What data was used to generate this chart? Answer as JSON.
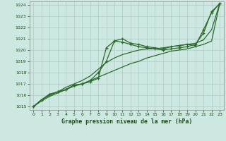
{
  "bg_color": "#cce8e0",
  "grid_color": "#aacccc",
  "line_color": "#2d6b2d",
  "xlabel": "Graphe pression niveau de la mer (hPa)",
  "ylim": [
    1014.7,
    1024.3
  ],
  "xlim": [
    -0.5,
    23.5
  ],
  "yticks": [
    1015,
    1016,
    1017,
    1018,
    1019,
    1020,
    1021,
    1022,
    1023,
    1024
  ],
  "xticks": [
    0,
    1,
    2,
    3,
    4,
    5,
    6,
    7,
    8,
    9,
    10,
    11,
    12,
    13,
    14,
    15,
    16,
    17,
    18,
    19,
    20,
    21,
    22,
    23
  ],
  "series": [
    {
      "x": [
        0,
        1,
        2,
        3,
        4,
        5,
        6,
        7,
        8,
        9,
        10,
        11,
        12,
        13,
        14,
        15,
        16,
        17,
        18,
        19,
        20,
        21,
        22,
        23
      ],
      "y": [
        1015.0,
        1015.6,
        1016.1,
        1016.3,
        1016.5,
        1016.9,
        1017.0,
        1017.2,
        1017.5,
        1020.2,
        1020.8,
        1020.7,
        1020.5,
        1020.3,
        1020.2,
        1020.1,
        1020.0,
        1020.1,
        1020.2,
        1020.3,
        1020.5,
        1021.5,
        1023.4,
        1024.1
      ],
      "marker": true,
      "lw": 0.9
    },
    {
      "x": [
        0,
        1,
        2,
        3,
        4,
        5,
        6,
        7,
        8,
        9,
        10,
        11,
        12,
        13,
        14,
        15,
        16,
        17,
        18,
        19,
        20,
        21,
        22,
        23
      ],
      "y": [
        1015.0,
        1015.6,
        1016.1,
        1016.3,
        1016.5,
        1016.9,
        1017.0,
        1017.3,
        1018.0,
        1019.0,
        1020.8,
        1021.0,
        1020.6,
        1020.5,
        1020.3,
        1020.2,
        1020.1,
        1020.3,
        1020.4,
        1020.5,
        1020.4,
        1021.8,
        1023.3,
        1024.1
      ],
      "marker": true,
      "lw": 0.9
    },
    {
      "x": [
        0,
        1,
        2,
        3,
        4,
        5,
        6,
        7,
        8,
        9,
        10,
        11,
        12,
        13,
        14,
        15,
        16,
        17,
        18,
        19,
        20,
        21,
        22,
        23
      ],
      "y": [
        1015.0,
        1015.6,
        1016.0,
        1016.3,
        1016.7,
        1017.0,
        1017.3,
        1017.7,
        1018.3,
        1018.9,
        1019.3,
        1019.6,
        1019.8,
        1020.0,
        1020.1,
        1020.1,
        1020.2,
        1020.3,
        1020.4,
        1020.5,
        1020.6,
        1020.9,
        1021.8,
        1024.1
      ],
      "marker": false,
      "lw": 0.9
    },
    {
      "x": [
        0,
        1,
        2,
        3,
        4,
        5,
        6,
        7,
        8,
        9,
        10,
        11,
        12,
        13,
        14,
        15,
        16,
        17,
        18,
        19,
        20,
        21,
        22,
        23
      ],
      "y": [
        1015.0,
        1015.5,
        1015.9,
        1016.2,
        1016.5,
        1016.8,
        1017.0,
        1017.3,
        1017.6,
        1017.9,
        1018.2,
        1018.5,
        1018.8,
        1019.0,
        1019.3,
        1019.5,
        1019.7,
        1019.9,
        1020.0,
        1020.1,
        1020.3,
        1020.5,
        1020.8,
        1024.1
      ],
      "marker": false,
      "lw": 0.9
    }
  ]
}
